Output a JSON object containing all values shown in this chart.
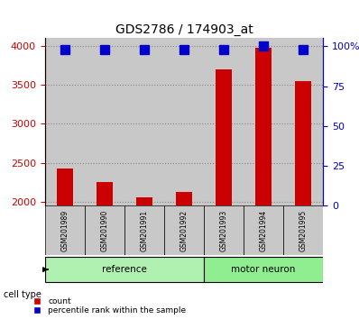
{
  "title": "GDS2786 / 174903_at",
  "samples": [
    "GSM201989",
    "GSM201990",
    "GSM201991",
    "GSM201992",
    "GSM201993",
    "GSM201994",
    "GSM201995"
  ],
  "counts": [
    2420,
    2250,
    2060,
    2120,
    3700,
    3980,
    3550
  ],
  "percentiles": [
    98,
    98,
    98,
    98,
    98,
    100,
    98
  ],
  "ylim_left": [
    1950,
    4100
  ],
  "ylim_right": [
    0,
    105
  ],
  "yticks_left": [
    2000,
    2500,
    3000,
    3500,
    4000
  ],
  "yticks_right": [
    0,
    25,
    50,
    75,
    100
  ],
  "yticklabels_right": [
    "0",
    "25",
    "50",
    "75",
    "100%"
  ],
  "bar_color": "#CC0000",
  "percentile_color": "#0000CC",
  "grid_color": "#888888",
  "label_area_color": "#c8c8c8",
  "ref_group_color": "#b0f0b0",
  "motor_group_color": "#90ee90",
  "left_axis_color": "#CC0000",
  "right_axis_color": "#0000CC",
  "bar_width": 0.4,
  "percentile_marker_size": 7
}
